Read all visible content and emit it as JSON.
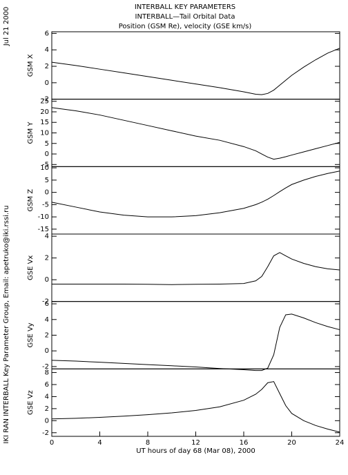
{
  "title_lines": [
    "INTERBALL KEY PARAMETERS",
    "INTERBALL—Tail Orbital Data",
    "Position (GSM Re), velocity (GSE km/s)"
  ],
  "date_note": "Jul 21 2000",
  "credit_note": "IKI RAN INTERBALL Key Parameter Group, Email: apetruko@iki.rssi.ru",
  "chart_data": [
    {
      "type": "line",
      "ylabel": "GSM X",
      "color": "#000000",
      "x": [
        0,
        2,
        4,
        6,
        8,
        10,
        12,
        14,
        16,
        17,
        17.5,
        18,
        18.5,
        19,
        19.5,
        20,
        21,
        22,
        23,
        24
      ],
      "values": [
        2.5,
        2.1,
        1.65,
        1.2,
        0.75,
        0.3,
        -0.15,
        -0.6,
        -1.1,
        -1.4,
        -1.45,
        -1.3,
        -0.9,
        -0.3,
        0.3,
        0.9,
        1.9,
        2.8,
        3.6,
        4.2
      ],
      "xlim": [
        0,
        24
      ],
      "ylim": [
        -2,
        6.2
      ],
      "yticks": [
        -2,
        0,
        2,
        4,
        6
      ]
    },
    {
      "type": "line",
      "ylabel": "GSM Y",
      "color": "#000000",
      "x": [
        0,
        2,
        4,
        6,
        8,
        10,
        12,
        14,
        16,
        17,
        17.5,
        18,
        18.5,
        19,
        19.5,
        20,
        21,
        22,
        23,
        24
      ],
      "values": [
        22,
        20.5,
        18.5,
        16,
        13.5,
        11,
        8.5,
        6.5,
        3.5,
        1.5,
        0,
        -1.5,
        -2.5,
        -2,
        -1.3,
        -0.5,
        1,
        2.5,
        4,
        5.5
      ],
      "xlim": [
        0,
        24
      ],
      "ylim": [
        -6,
        26
      ],
      "yticks": [
        -5,
        0,
        5,
        10,
        15,
        20,
        25
      ]
    },
    {
      "type": "line",
      "ylabel": "GSM Z",
      "color": "#000000",
      "x": [
        0,
        2,
        4,
        6,
        8,
        10,
        12,
        14,
        16,
        17,
        17.5,
        18,
        18.5,
        19,
        19.5,
        20,
        21,
        22,
        23,
        24
      ],
      "values": [
        -4,
        -6,
        -8,
        -9.3,
        -10,
        -10,
        -9.5,
        -8.3,
        -6.5,
        -5,
        -4,
        -2.8,
        -1.3,
        0.3,
        1.8,
        3.2,
        5,
        6.5,
        7.7,
        8.7
      ],
      "xlim": [
        0,
        24
      ],
      "ylim": [
        -17,
        10.5
      ],
      "yticks": [
        -15,
        -10,
        -5,
        0,
        5,
        10
      ]
    },
    {
      "type": "line",
      "ylabel": "GSE Vx",
      "color": "#000000",
      "x": [
        0,
        2,
        4,
        6,
        8,
        10,
        12,
        14,
        16,
        17,
        17.5,
        18,
        18.5,
        19,
        19.5,
        20,
        21,
        22,
        23,
        24
      ],
      "values": [
        -0.4,
        -0.4,
        -0.4,
        -0.4,
        -0.42,
        -0.45,
        -0.42,
        -0.4,
        -0.35,
        -0.1,
        0.3,
        1.2,
        2.2,
        2.5,
        2.2,
        1.9,
        1.5,
        1.2,
        1,
        0.9
      ],
      "xlim": [
        0,
        24
      ],
      "ylim": [
        -2,
        4.2
      ],
      "yticks": [
        -2,
        0,
        2,
        4
      ]
    },
    {
      "type": "line",
      "ylabel": "GSE Vy",
      "color": "#000000",
      "x": [
        0,
        2,
        4,
        6,
        8,
        10,
        12,
        14,
        16,
        17,
        17.5,
        18,
        18.5,
        19,
        19.5,
        20,
        21,
        22,
        23,
        24
      ],
      "values": [
        -1.2,
        -1.3,
        -1.45,
        -1.6,
        -1.75,
        -1.9,
        -2.05,
        -2.25,
        -2.4,
        -2.5,
        -2.5,
        -2.2,
        -0.5,
        3,
        4.6,
        4.7,
        4.2,
        3.6,
        3.1,
        2.7
      ],
      "xlim": [
        0,
        24
      ],
      "ylim": [
        -2.3,
        6.3
      ],
      "yticks": [
        -2,
        0,
        2,
        4,
        6
      ]
    },
    {
      "type": "line",
      "ylabel": "GSE Vz",
      "color": "#000000",
      "x": [
        0,
        2,
        4,
        6,
        8,
        10,
        12,
        14,
        16,
        17,
        17.5,
        18,
        18.5,
        19,
        19.5,
        20,
        21,
        22,
        23,
        24
      ],
      "values": [
        0.3,
        0.4,
        0.55,
        0.75,
        1,
        1.3,
        1.7,
        2.3,
        3.4,
        4.4,
        5.2,
        6.3,
        6.5,
        4.5,
        2.5,
        1.2,
        0,
        -0.8,
        -1.4,
        -1.9
      ],
      "xlim": [
        0,
        24
      ],
      "ylim": [
        -2.6,
        8.6
      ],
      "yticks": [
        -2,
        0,
        2,
        4,
        6,
        8
      ],
      "xticks": [
        0,
        4,
        8,
        12,
        16,
        20,
        24
      ],
      "xlabel": "UT hours of day  68 (Mar 08), 2000"
    }
  ]
}
